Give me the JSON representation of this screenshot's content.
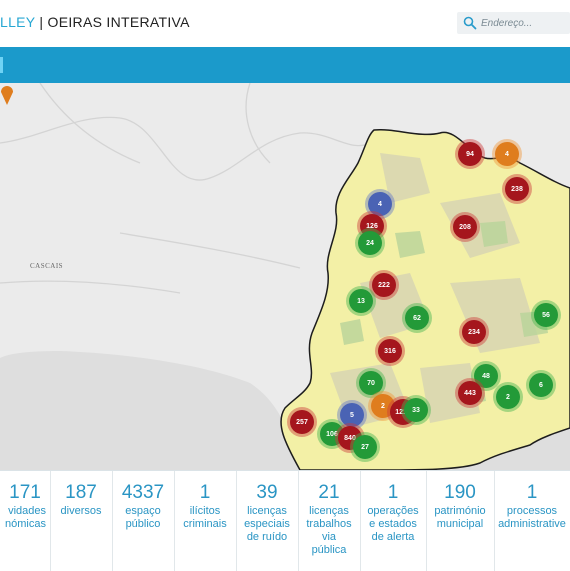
{
  "header": {
    "brand_accent": "LLEY",
    "brand_main": " | OEIRAS INTERATIVA",
    "search_placeholder": "Endereço..."
  },
  "map": {
    "place_label": "CASCAIS",
    "clusters": [
      {
        "label": "94",
        "color": "red"
      },
      {
        "label": "4",
        "color": "orange"
      },
      {
        "label": "238",
        "color": "red"
      },
      {
        "label": "4",
        "color": "blue"
      },
      {
        "label": "126",
        "color": "red"
      },
      {
        "label": "24",
        "color": "green"
      },
      {
        "label": "208",
        "color": "red"
      },
      {
        "label": "222",
        "color": "red"
      },
      {
        "label": "13",
        "color": "green"
      },
      {
        "label": "62",
        "color": "green"
      },
      {
        "label": "234",
        "color": "red"
      },
      {
        "label": "56",
        "color": "green"
      },
      {
        "label": "316",
        "color": "red"
      },
      {
        "label": "70",
        "color": "green"
      },
      {
        "label": "48",
        "color": "green"
      },
      {
        "label": "443",
        "color": "red"
      },
      {
        "label": "2",
        "color": "green"
      },
      {
        "label": "6",
        "color": "green"
      },
      {
        "label": "5",
        "color": "blue"
      },
      {
        "label": "2",
        "color": "orange"
      },
      {
        "label": "1217",
        "color": "red"
      },
      {
        "label": "33",
        "color": "green"
      },
      {
        "label": "257",
        "color": "red"
      },
      {
        "label": "106",
        "color": "green"
      },
      {
        "label": "840",
        "color": "red"
      },
      {
        "label": "27",
        "color": "green"
      }
    ],
    "colors": {
      "red": "#a5161d",
      "green": "#239a38",
      "orange": "#df7d1e",
      "blue": "#4a63b4",
      "water": "#dedede",
      "land": "#ebebeb",
      "region": "#f3f0a6"
    }
  },
  "stats": [
    {
      "value": "171",
      "label": "vidades\nnómicas"
    },
    {
      "value": "187",
      "label": "diversos"
    },
    {
      "value": "4337",
      "label": "espaço\npúblico"
    },
    {
      "value": "1",
      "label": "ilícitos\ncriminais"
    },
    {
      "value": "39",
      "label": "licenças\nespeciais\nde ruído"
    },
    {
      "value": "21",
      "label": "licenças\ntrabalhos\nvia\npública"
    },
    {
      "value": "1",
      "label": "operações\ne estados\nde alerta"
    },
    {
      "value": "190",
      "label": "património\nmunicipal"
    },
    {
      "value": "1",
      "label": "processos\nadministrative"
    }
  ]
}
